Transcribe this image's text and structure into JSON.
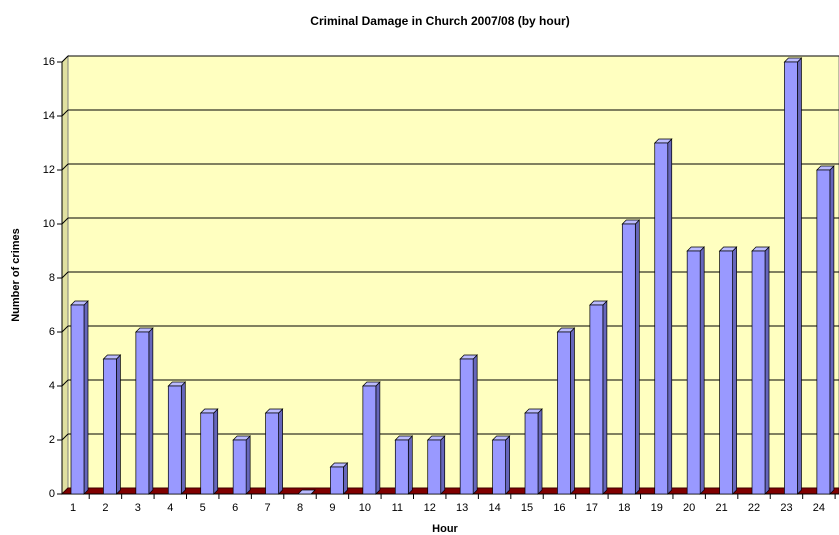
{
  "chart_data": {
    "type": "bar",
    "title": "Criminal Damage in Church 2007/08 (by hour)",
    "x_label": "Hour",
    "y_label": "Number of crimes",
    "categories": [
      "1",
      "2",
      "3",
      "4",
      "5",
      "6",
      "7",
      "8",
      "9",
      "10",
      "11",
      "12",
      "13",
      "14",
      "15",
      "16",
      "17",
      "18",
      "19",
      "20",
      "21",
      "22",
      "23",
      "24"
    ],
    "values": [
      7,
      5,
      6,
      4,
      3,
      2,
      3,
      0,
      1,
      4,
      2,
      2,
      5,
      2,
      3,
      6,
      7,
      10,
      13,
      9,
      9,
      9,
      16,
      12
    ],
    "color": "#9999ff",
    "ylim": [
      0,
      16
    ],
    "yticks": [
      0,
      2,
      4,
      6,
      8,
      10,
      12,
      14,
      16
    ],
    "grid": true
  }
}
